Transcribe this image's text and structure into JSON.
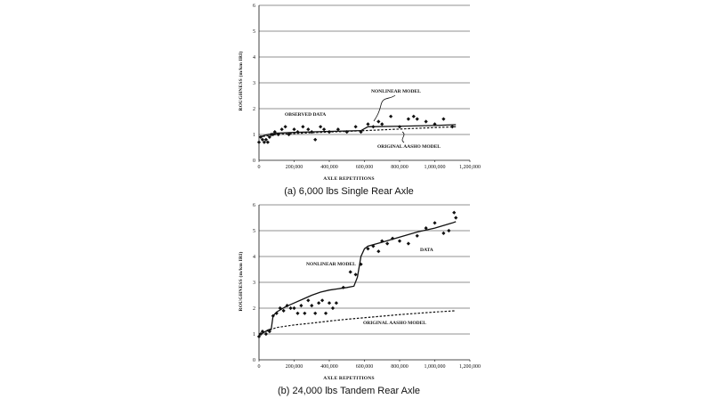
{
  "chart_data": [
    {
      "type": "scatter",
      "panel": "a",
      "caption": "(a) 6,000 lbs Single Rear Axle",
      "xlabel": "AXLE REPETITIONS",
      "ylabel": "ROUGHNESS (m/km IRI)",
      "xlim": [
        0,
        1200000
      ],
      "ylim": [
        0,
        6
      ],
      "xticks": [
        0,
        200000,
        400000,
        600000,
        800000,
        1000000,
        1200000
      ],
      "xtick_labels": [
        "0",
        "200,000",
        "400,000",
        "600,000",
        "800,000",
        "1,000,000",
        "1,200,000"
      ],
      "yticks": [
        0,
        1,
        2,
        3,
        4,
        5,
        6
      ],
      "ytick_labels": [
        "0",
        "1",
        "2",
        "3",
        "4",
        "5",
        "6"
      ],
      "grid": "horizontal",
      "annotations": [
        {
          "text": "OBSERVED DATA"
        },
        {
          "text": "NONLINEAR MODEL"
        },
        {
          "text": "ORIGINAL AASHO MODEL"
        }
      ],
      "series": [
        {
          "kind": "points",
          "x": [
            0,
            10000,
            20000,
            30000,
            40000,
            50000,
            60000,
            70000,
            80000,
            90000,
            110000,
            130000,
            150000,
            170000,
            200000,
            220000,
            250000,
            280000,
            300000,
            320000,
            350000,
            370000,
            400000,
            450000,
            500000,
            550000,
            580000,
            620000,
            650000,
            680000,
            700000,
            750000,
            800000,
            850000,
            880000,
            900000,
            950000,
            1000000,
            1050000,
            1100000
          ],
          "y": [
            0.7,
            0.9,
            0.8,
            0.7,
            0.8,
            0.7,
            0.9,
            1.0,
            1.0,
            1.1,
            1.0,
            1.2,
            1.3,
            1.0,
            1.2,
            1.1,
            1.3,
            1.2,
            1.1,
            0.8,
            1.3,
            1.2,
            1.1,
            1.2,
            1.1,
            1.3,
            1.1,
            1.4,
            1.3,
            1.5,
            1.4,
            1.7,
            1.3,
            1.6,
            1.7,
            1.6,
            1.5,
            1.4,
            1.6,
            1.3
          ]
        },
        {
          "kind": "solid",
          "x": [
            0,
            50000,
            100000,
            200000,
            400000,
            580000,
            620000,
            800000,
            1000000,
            1120000
          ],
          "y": [
            0.9,
            1.0,
            1.05,
            1.08,
            1.12,
            1.15,
            1.3,
            1.32,
            1.35,
            1.38
          ]
        },
        {
          "kind": "dashed",
          "x": [
            0,
            100000,
            300000,
            500000,
            700000,
            900000,
            1120000
          ],
          "y": [
            0.9,
            1.0,
            1.07,
            1.12,
            1.18,
            1.24,
            1.3
          ]
        }
      ]
    },
    {
      "type": "scatter",
      "panel": "b",
      "caption": "(b) 24,000 lbs Tandem Rear Axle",
      "xlabel": "AXLE REPETITIONS",
      "ylabel": "ROUGHNESS (m/km IRI)",
      "xlim": [
        0,
        1200000
      ],
      "ylim": [
        0,
        6
      ],
      "xticks": [
        0,
        200000,
        400000,
        600000,
        800000,
        1000000,
        1200000
      ],
      "xtick_labels": [
        "0",
        "200,000",
        "400,000",
        "600,000",
        "800,000",
        "1,000,000",
        "1,200,000"
      ],
      "yticks": [
        0,
        1,
        2,
        3,
        4,
        5,
        6
      ],
      "ytick_labels": [
        "0",
        "1",
        "2",
        "3",
        "4",
        "5",
        "6"
      ],
      "grid": "horizontal",
      "annotations": [
        {
          "text": "DATA"
        },
        {
          "text": "NONLINEAR MODEL"
        },
        {
          "text": "ORIGINAL AASHO MODEL"
        }
      ],
      "series": [
        {
          "kind": "points",
          "x": [
            0,
            10000,
            20000,
            40000,
            60000,
            80000,
            100000,
            120000,
            140000,
            160000,
            180000,
            200000,
            220000,
            240000,
            260000,
            280000,
            300000,
            320000,
            340000,
            360000,
            380000,
            400000,
            420000,
            440000,
            480000,
            520000,
            550000,
            580000,
            620000,
            650000,
            680000,
            700000,
            730000,
            760000,
            800000,
            850000,
            900000,
            950000,
            1000000,
            1050000,
            1080000,
            1110000,
            1120000
          ],
          "y": [
            0.9,
            1.0,
            1.1,
            1.0,
            1.1,
            1.7,
            1.8,
            2.0,
            1.9,
            2.1,
            2.0,
            2.0,
            1.8,
            2.1,
            1.8,
            2.3,
            2.1,
            1.8,
            2.2,
            2.3,
            1.8,
            2.2,
            2.0,
            2.2,
            2.8,
            3.4,
            3.3,
            3.7,
            4.3,
            4.4,
            4.2,
            4.6,
            4.5,
            4.7,
            4.6,
            4.5,
            4.8,
            5.1,
            5.3,
            4.9,
            5.0,
            5.7,
            5.5
          ]
        },
        {
          "kind": "solid",
          "x": [
            0,
            50000,
            70000,
            80000,
            100000,
            150000,
            200000,
            250000,
            300000,
            350000,
            400000,
            450000,
            500000,
            540000,
            560000,
            580000,
            600000,
            620000,
            700000,
            800000,
            900000,
            1000000,
            1100000,
            1120000
          ],
          "y": [
            0.95,
            1.15,
            1.2,
            1.7,
            1.85,
            2.05,
            2.2,
            2.35,
            2.5,
            2.62,
            2.7,
            2.75,
            2.8,
            2.85,
            3.2,
            4.0,
            4.3,
            4.4,
            4.55,
            4.75,
            4.95,
            5.1,
            5.3,
            5.35
          ]
        },
        {
          "kind": "dashed",
          "x": [
            0,
            100000,
            200000,
            300000,
            400000,
            500000,
            600000,
            700000,
            800000,
            900000,
            1000000,
            1120000
          ],
          "y": [
            1.0,
            1.25,
            1.35,
            1.42,
            1.5,
            1.57,
            1.63,
            1.69,
            1.75,
            1.8,
            1.85,
            1.9
          ]
        }
      ]
    }
  ]
}
